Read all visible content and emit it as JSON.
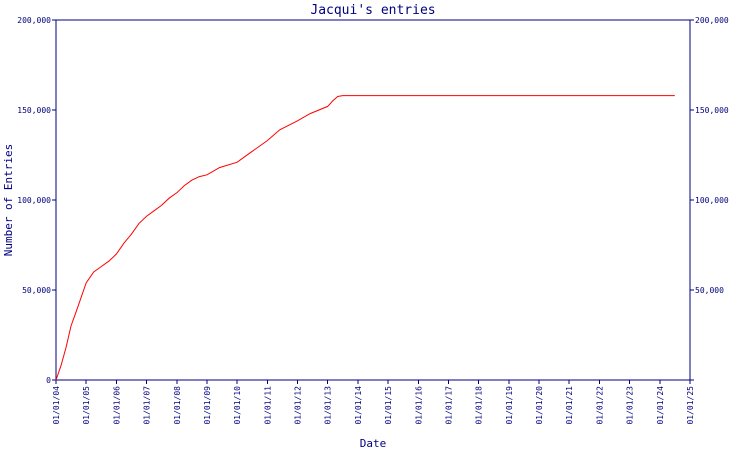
{
  "chart_data": {
    "type": "line",
    "title": "Jacqui's entries",
    "xlabel": "Date",
    "ylabel": "Number of Entries",
    "xlim": [
      "2004-01-01",
      "2025-01-01"
    ],
    "ylim": [
      0,
      200000
    ],
    "x_ticks": [
      "01/01/04",
      "01/01/05",
      "01/01/06",
      "01/01/07",
      "01/01/08",
      "01/01/09",
      "01/01/10",
      "01/01/11",
      "01/01/12",
      "01/01/13",
      "01/01/14",
      "01/01/15",
      "01/01/16",
      "01/01/17",
      "01/01/18",
      "01/01/19",
      "01/01/20",
      "01/01/21",
      "01/01/22",
      "01/01/23",
      "01/01/24",
      "01/01/25"
    ],
    "y_ticks": [
      "0",
      "50,000",
      "100,000",
      "150,000",
      "200,000"
    ],
    "y_tick_values": [
      0,
      50000,
      100000,
      150000,
      200000
    ],
    "right_y_ticks": [
      "",
      "50,000",
      "100,000",
      "150,000",
      "200,000"
    ],
    "grid": false,
    "colors": {
      "axis": "#00007f",
      "series": "#ff0000",
      "background": "#ffffff"
    },
    "series": [
      {
        "x": [
          "2004-01-01",
          "2004-03-01",
          "2004-05-01",
          "2004-07-01",
          "2004-09-01",
          "2004-11-01",
          "2005-01-01",
          "2005-04-01",
          "2005-07-01",
          "2005-10-01",
          "2006-01-01",
          "2006-04-01",
          "2006-07-01",
          "2006-10-01",
          "2007-01-01",
          "2007-04-01",
          "2007-07-01",
          "2007-10-01",
          "2008-01-01",
          "2008-04-01",
          "2008-07-01",
          "2008-10-01",
          "2009-01-01",
          "2009-06-01",
          "2010-01-01",
          "2010-06-01",
          "2011-01-01",
          "2011-06-01",
          "2012-01-01",
          "2012-06-01",
          "2013-01-01",
          "2013-03-01",
          "2013-05-01",
          "2013-07-01",
          "2014-01-01",
          "2016-01-01",
          "2018-01-01",
          "2020-01-01",
          "2022-01-01",
          "2024-01-01",
          "2024-07-01"
        ],
        "y": [
          0,
          8000,
          18000,
          30000,
          38000,
          46000,
          54000,
          60000,
          63000,
          66000,
          70000,
          76000,
          81000,
          87000,
          91000,
          94000,
          97000,
          101000,
          104000,
          108000,
          111000,
          113000,
          114000,
          118000,
          121000,
          126000,
          133000,
          139000,
          144000,
          148000,
          152000,
          155000,
          157500,
          158000,
          158000,
          158000,
          158000,
          158000,
          158000,
          158000,
          158000
        ]
      }
    ]
  }
}
